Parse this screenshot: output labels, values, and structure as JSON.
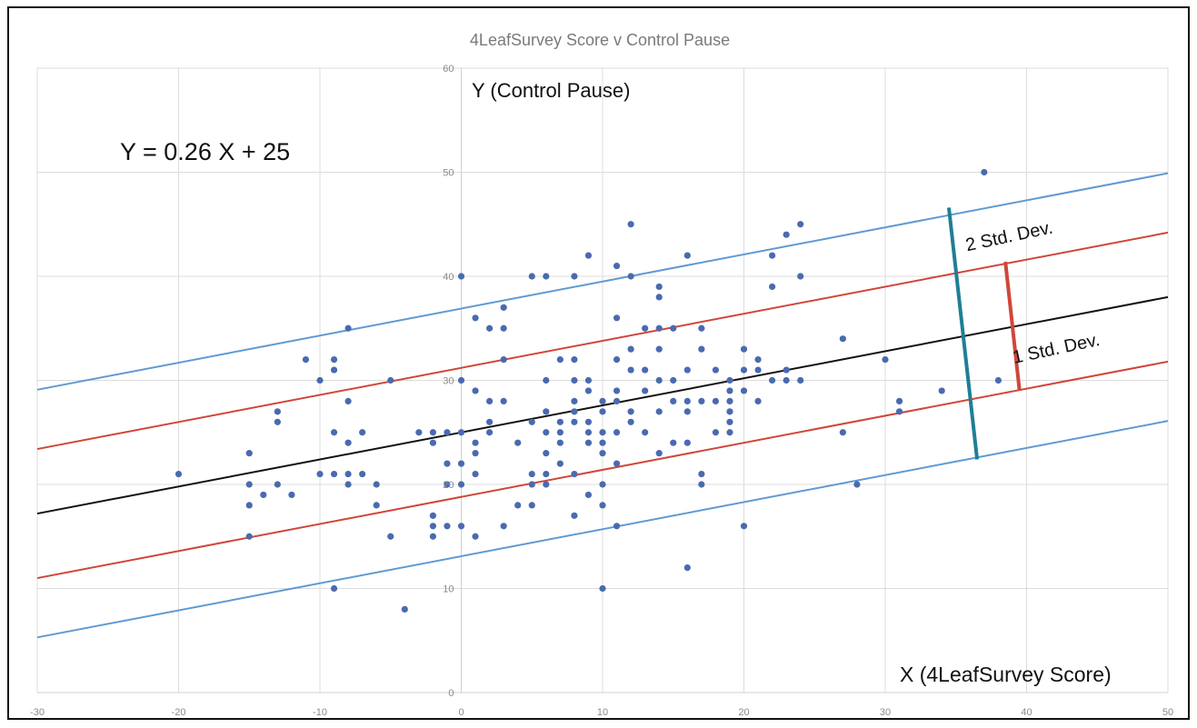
{
  "chart_data": {
    "type": "scatter",
    "title": "4LeafSurvey Score v Control Pause",
    "ylabel": "Y  (Control Pause)",
    "xlabel": "X (4LeafSurvey Score)",
    "equation": "Y = 0.26 X + 25",
    "xlim": [
      -30,
      50
    ],
    "ylim": [
      0,
      60
    ],
    "grid": true,
    "x_ticks": [
      "-30",
      "-20",
      "-10",
      "0",
      "10",
      "20",
      "30",
      "40",
      "50"
    ],
    "y_ticks": [
      "0",
      "10",
      "20",
      "30",
      "40",
      "50",
      "60"
    ],
    "regression": {
      "slope": 0.26,
      "intercept": 25,
      "color": "#111111"
    },
    "bands": [
      {
        "label": "1 Std. Dev.",
        "offset": 6.2,
        "color": "#d0463a"
      },
      {
        "label": "2 Std. Dev.",
        "offset": 11.9,
        "color": "#5f9ad2"
      }
    ],
    "markers": [
      {
        "label": "2 Std. Dev.",
        "color": "#1f7f94",
        "x_start": 34.5,
        "x_end": 36.5,
        "y_start": 46.6,
        "y_end": 22.4
      },
      {
        "label": "1 Std. Dev.",
        "color": "#d0463a",
        "x_start": 38.5,
        "x_end": 39.5,
        "y_start": 41.4,
        "y_end": 29.0
      }
    ],
    "point_color": "#4a6ab0",
    "points": [
      [
        -20,
        21
      ],
      [
        -15,
        23
      ],
      [
        -15,
        20
      ],
      [
        -15,
        18
      ],
      [
        -15,
        15
      ],
      [
        -14,
        19
      ],
      [
        -13,
        27
      ],
      [
        -13,
        26
      ],
      [
        -13,
        20
      ],
      [
        -12,
        19
      ],
      [
        -11,
        32
      ],
      [
        -10,
        30
      ],
      [
        -10,
        21
      ],
      [
        -9,
        32
      ],
      [
        -9,
        31
      ],
      [
        -9,
        25
      ],
      [
        -9,
        21
      ],
      [
        -9,
        10
      ],
      [
        -8,
        35
      ],
      [
        -8,
        28
      ],
      [
        -8,
        24
      ],
      [
        -8,
        21
      ],
      [
        -8,
        20
      ],
      [
        -7,
        25
      ],
      [
        -7,
        21
      ],
      [
        -6,
        20
      ],
      [
        -6,
        18
      ],
      [
        -5,
        30
      ],
      [
        -5,
        15
      ],
      [
        -4,
        8
      ],
      [
        -3,
        25
      ],
      [
        -2,
        25
      ],
      [
        -2,
        24
      ],
      [
        -2,
        17
      ],
      [
        -2,
        16
      ],
      [
        -2,
        15
      ],
      [
        -1,
        25
      ],
      [
        -1,
        22
      ],
      [
        -1,
        20
      ],
      [
        -1,
        16
      ],
      [
        0,
        40
      ],
      [
        0,
        30
      ],
      [
        0,
        25
      ],
      [
        0,
        22
      ],
      [
        0,
        20
      ],
      [
        0,
        16
      ],
      [
        1,
        36
      ],
      [
        1,
        29
      ],
      [
        1,
        24
      ],
      [
        1,
        23
      ],
      [
        1,
        21
      ],
      [
        1,
        15
      ],
      [
        2,
        35
      ],
      [
        2,
        28
      ],
      [
        2,
        26
      ],
      [
        2,
        25
      ],
      [
        3,
        37
      ],
      [
        3,
        35
      ],
      [
        3,
        32
      ],
      [
        3,
        28
      ],
      [
        3,
        16
      ],
      [
        4,
        24
      ],
      [
        4,
        18
      ],
      [
        5,
        40
      ],
      [
        5,
        26
      ],
      [
        5,
        21
      ],
      [
        5,
        20
      ],
      [
        5,
        18
      ],
      [
        6,
        40
      ],
      [
        6,
        30
      ],
      [
        6,
        27
      ],
      [
        6,
        25
      ],
      [
        6,
        23
      ],
      [
        6,
        21
      ],
      [
        6,
        20
      ],
      [
        7,
        32
      ],
      [
        7,
        26
      ],
      [
        7,
        25
      ],
      [
        7,
        24
      ],
      [
        7,
        22
      ],
      [
        8,
        40
      ],
      [
        8,
        32
      ],
      [
        8,
        30
      ],
      [
        8,
        28
      ],
      [
        8,
        27
      ],
      [
        8,
        26
      ],
      [
        8,
        21
      ],
      [
        8,
        17
      ],
      [
        9,
        42
      ],
      [
        9,
        30
      ],
      [
        9,
        29
      ],
      [
        9,
        26
      ],
      [
        9,
        25
      ],
      [
        9,
        24
      ],
      [
        9,
        19
      ],
      [
        10,
        28
      ],
      [
        10,
        27
      ],
      [
        10,
        25
      ],
      [
        10,
        24
      ],
      [
        10,
        23
      ],
      [
        10,
        20
      ],
      [
        10,
        18
      ],
      [
        10,
        10
      ],
      [
        11,
        41
      ],
      [
        11,
        36
      ],
      [
        11,
        32
      ],
      [
        11,
        29
      ],
      [
        11,
        28
      ],
      [
        11,
        25
      ],
      [
        11,
        22
      ],
      [
        11,
        16
      ],
      [
        12,
        45
      ],
      [
        12,
        40
      ],
      [
        12,
        33
      ],
      [
        12,
        31
      ],
      [
        12,
        27
      ],
      [
        12,
        26
      ],
      [
        13,
        35
      ],
      [
        13,
        31
      ],
      [
        13,
        29
      ],
      [
        13,
        25
      ],
      [
        14,
        39
      ],
      [
        14,
        38
      ],
      [
        14,
        35
      ],
      [
        14,
        33
      ],
      [
        14,
        30
      ],
      [
        14,
        27
      ],
      [
        14,
        23
      ],
      [
        15,
        35
      ],
      [
        15,
        30
      ],
      [
        15,
        28
      ],
      [
        15,
        24
      ],
      [
        16,
        42
      ],
      [
        16,
        31
      ],
      [
        16,
        28
      ],
      [
        16,
        27
      ],
      [
        16,
        24
      ],
      [
        16,
        12
      ],
      [
        17,
        35
      ],
      [
        17,
        33
      ],
      [
        17,
        28
      ],
      [
        17,
        21
      ],
      [
        17,
        20
      ],
      [
        18,
        31
      ],
      [
        18,
        28
      ],
      [
        18,
        25
      ],
      [
        19,
        30
      ],
      [
        19,
        29
      ],
      [
        19,
        28
      ],
      [
        19,
        27
      ],
      [
        19,
        26
      ],
      [
        19,
        25
      ],
      [
        20,
        33
      ],
      [
        20,
        31
      ],
      [
        20,
        29
      ],
      [
        20,
        16
      ],
      [
        21,
        32
      ],
      [
        21,
        31
      ],
      [
        21,
        28
      ],
      [
        22,
        42
      ],
      [
        22,
        39
      ],
      [
        22,
        30
      ],
      [
        23,
        44
      ],
      [
        23,
        31
      ],
      [
        23,
        30
      ],
      [
        24,
        45
      ],
      [
        24,
        40
      ],
      [
        24,
        30
      ],
      [
        27,
        34
      ],
      [
        27,
        25
      ],
      [
        28,
        20
      ],
      [
        30,
        32
      ],
      [
        31,
        28
      ],
      [
        31,
        27
      ],
      [
        34,
        29
      ],
      [
        37,
        50
      ],
      [
        38,
        30
      ]
    ]
  }
}
